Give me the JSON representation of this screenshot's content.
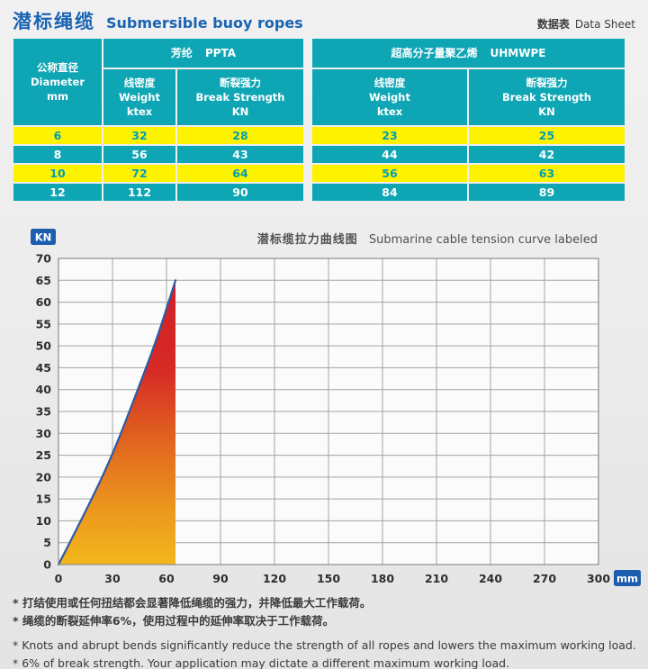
{
  "page": {
    "title_cn": "潜标绳缆",
    "title_en": "Submersible buoy ropes",
    "sheet_label_cn": "数据表",
    "sheet_label_en": "Data Sheet"
  },
  "colors": {
    "title_blue": "#1a64b4",
    "table_teal": "#0ea6b5",
    "row_yellow": "#fdf200",
    "yellow_row_text": "#009fb4",
    "badge_blue": "#1d5dad",
    "curve_stroke": "#2b5ba7"
  },
  "tables": {
    "diameter_header": {
      "cn": "公称直径",
      "en": "Diameter",
      "unit": "mm"
    },
    "left": {
      "group_cn": "芳纶",
      "group_en": "PPTA",
      "col_weight": {
        "cn": "线密度",
        "en": "Weight",
        "unit": "ktex"
      },
      "col_break": {
        "cn": "断裂强力",
        "en": "Break Strength",
        "unit": "KN"
      },
      "rows": [
        [
          6,
          32,
          28
        ],
        [
          8,
          56,
          43
        ],
        [
          10,
          72,
          64
        ],
        [
          12,
          112,
          90
        ]
      ]
    },
    "right": {
      "group_cn": "超高分子量聚乙烯",
      "group_en": "UHMWPE",
      "col_weight": {
        "cn": "线密度",
        "en": "Weight",
        "unit": "ktex"
      },
      "col_break": {
        "cn": "断裂强力",
        "en": "Break Strength",
        "unit": "KN"
      },
      "rows": [
        [
          23,
          25
        ],
        [
          44,
          42
        ],
        [
          56,
          63
        ],
        [
          84,
          89
        ]
      ]
    }
  },
  "chart_data": {
    "type": "area",
    "title_cn": "潜标缆拉力曲线图",
    "title_en": "Submarine cable tension curve labeled",
    "y_unit": "KN",
    "x_unit": "mm",
    "xlim": [
      0,
      300
    ],
    "ylim": [
      0,
      70
    ],
    "x_ticks": [
      0,
      30,
      60,
      90,
      120,
      150,
      180,
      210,
      240,
      270,
      300
    ],
    "y_ticks": [
      0,
      5,
      10,
      15,
      20,
      25,
      30,
      35,
      40,
      45,
      50,
      55,
      60,
      65,
      70
    ],
    "grid": true,
    "curve_points": [
      [
        0,
        0
      ],
      [
        15,
        12
      ],
      [
        30,
        25
      ],
      [
        45,
        41
      ],
      [
        55,
        52
      ],
      [
        65,
        65
      ]
    ],
    "peak": {
      "x": 65,
      "y": 65
    },
    "stroke_color": "#2b5ba7",
    "fill_gradient": [
      {
        "offset": "0%",
        "color": "#f3b71b"
      },
      {
        "offset": "18%",
        "color": "#ec9a1d"
      },
      {
        "offset": "45%",
        "color": "#e0611f"
      },
      {
        "offset": "68%",
        "color": "#d62b26"
      },
      {
        "offset": "100%",
        "color": "#d31f27"
      }
    ]
  },
  "footnotes": [
    "* 打结使用或任何扭结都会显著降低绳缆的强力，并降低最大工作载荷。",
    "* 绳缆的断裂延伸率6%，使用过程中的延伸率取决于工作载荷。",
    "* Knots and abrupt bends significantly reduce the strength of all ropes and lowers the maximum working load.",
    "* 6% of break strength. Your application may dictate a different maximum working load."
  ]
}
